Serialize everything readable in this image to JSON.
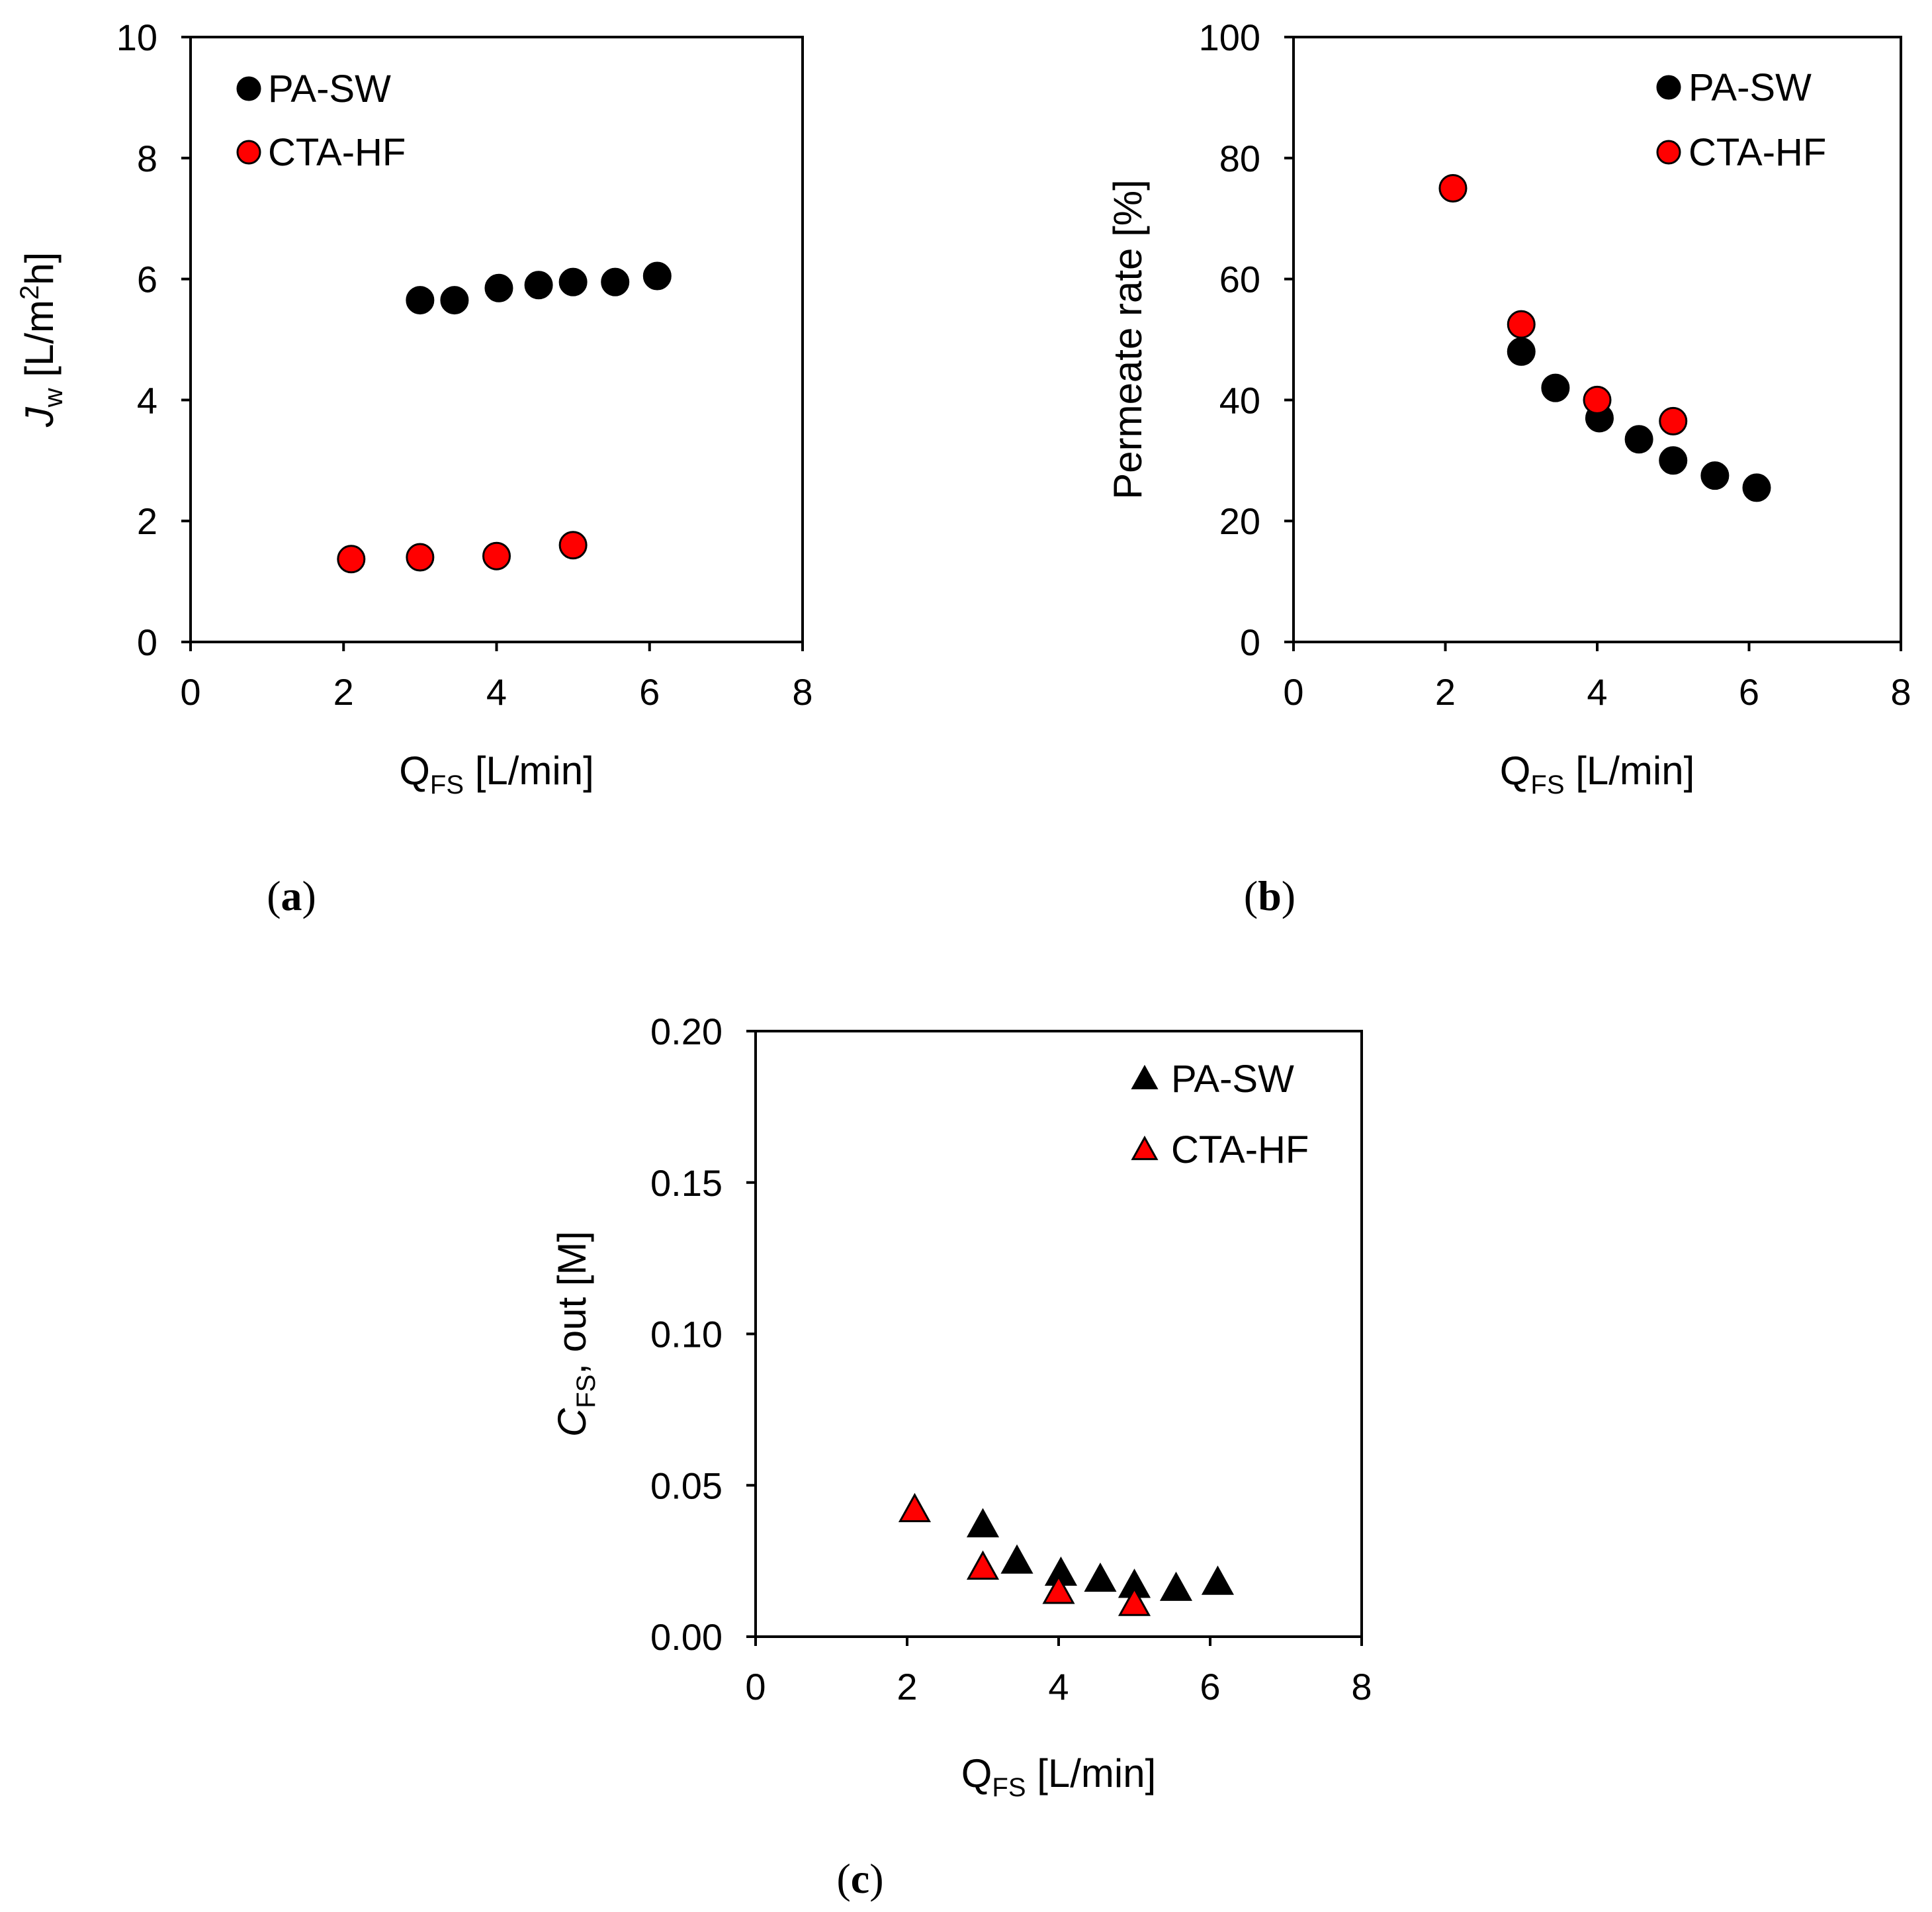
{
  "chart_data": [
    {
      "type": "scatter",
      "panel_label": "a",
      "title": "",
      "xlabel": {
        "main": "Q",
        "sub": "FS",
        "unit": " [L/min]"
      },
      "ylabel": {
        "main": "J",
        "sub": "w",
        "unit": " [L/m",
        "sup": "2",
        "unit_end": "h]"
      },
      "xlim": [
        0,
        8
      ],
      "ylim": [
        0,
        10
      ],
      "xticks": [
        0,
        2,
        4,
        6,
        8
      ],
      "yticks": [
        0,
        2,
        4,
        6,
        8,
        10
      ],
      "ytick_labels": [
        "0",
        "2",
        "4",
        "6",
        "8",
        "10"
      ],
      "legend_position": "top-left",
      "marker": "circle",
      "series": [
        {
          "name": "PA-SW",
          "color": "#000000",
          "x": [
            3.0,
            3.45,
            4.03,
            4.55,
            5.0,
            5.55,
            6.1
          ],
          "y": [
            5.65,
            5.65,
            5.85,
            5.9,
            5.95,
            5.95,
            6.05
          ]
        },
        {
          "name": "CTA-HF",
          "color": "#ff0000",
          "x": [
            2.1,
            3.0,
            4.0,
            5.0
          ],
          "y": [
            1.37,
            1.4,
            1.42,
            1.6
          ]
        }
      ]
    },
    {
      "type": "scatter",
      "panel_label": "b",
      "title": "",
      "xlabel": {
        "main": "Q",
        "sub": "FS",
        "unit": " [L/min]"
      },
      "ylabel": {
        "main": "Permeate rate [%]"
      },
      "xlim": [
        0,
        8
      ],
      "ylim": [
        0,
        100
      ],
      "xticks": [
        0,
        2,
        4,
        6,
        8
      ],
      "yticks": [
        0,
        20,
        40,
        60,
        80,
        100
      ],
      "ytick_labels": [
        "0",
        "20",
        "40",
        "60",
        "80",
        "100"
      ],
      "legend_position": "top-right",
      "marker": "circle",
      "series": [
        {
          "name": "PA-SW",
          "color": "#000000",
          "x": [
            3.0,
            3.45,
            4.03,
            4.55,
            5.0,
            5.55,
            6.1
          ],
          "y": [
            48,
            42,
            37,
            33.5,
            30,
            27.5,
            25.5
          ]
        },
        {
          "name": "CTA-HF",
          "color": "#ff0000",
          "x": [
            2.1,
            3.0,
            4.0,
            5.0
          ],
          "y": [
            75,
            52.5,
            40,
            36.5
          ]
        }
      ]
    },
    {
      "type": "scatter",
      "panel_label": "c",
      "title": "",
      "xlabel": {
        "main": "Q",
        "sub": "FS",
        "unit": " [L/min]"
      },
      "ylabel": {
        "main": "C",
        "sub": "FS",
        "unit": ", out [M]"
      },
      "xlim": [
        0,
        8
      ],
      "ylim": [
        0,
        0.2
      ],
      "xticks": [
        0,
        2,
        4,
        6,
        8
      ],
      "yticks": [
        0,
        0.05,
        0.1,
        0.15,
        0.2
      ],
      "ytick_labels": [
        "0.00",
        "0.05",
        "0.10",
        "0.15",
        "0.20"
      ],
      "legend_position": "top-right",
      "marker": "triangle",
      "series": [
        {
          "name": "PA-SW",
          "color": "#000000",
          "x": [
            3.0,
            3.45,
            4.03,
            4.55,
            5.0,
            5.55,
            6.1
          ],
          "y": [
            0.037,
            0.025,
            0.021,
            0.019,
            0.017,
            0.016,
            0.018
          ]
        },
        {
          "name": "CTA-HF",
          "color": "#ff0000",
          "x": [
            2.1,
            3.0,
            4.0,
            5.0
          ],
          "y": [
            0.042,
            0.023,
            0.015,
            0.011
          ]
        }
      ]
    }
  ]
}
